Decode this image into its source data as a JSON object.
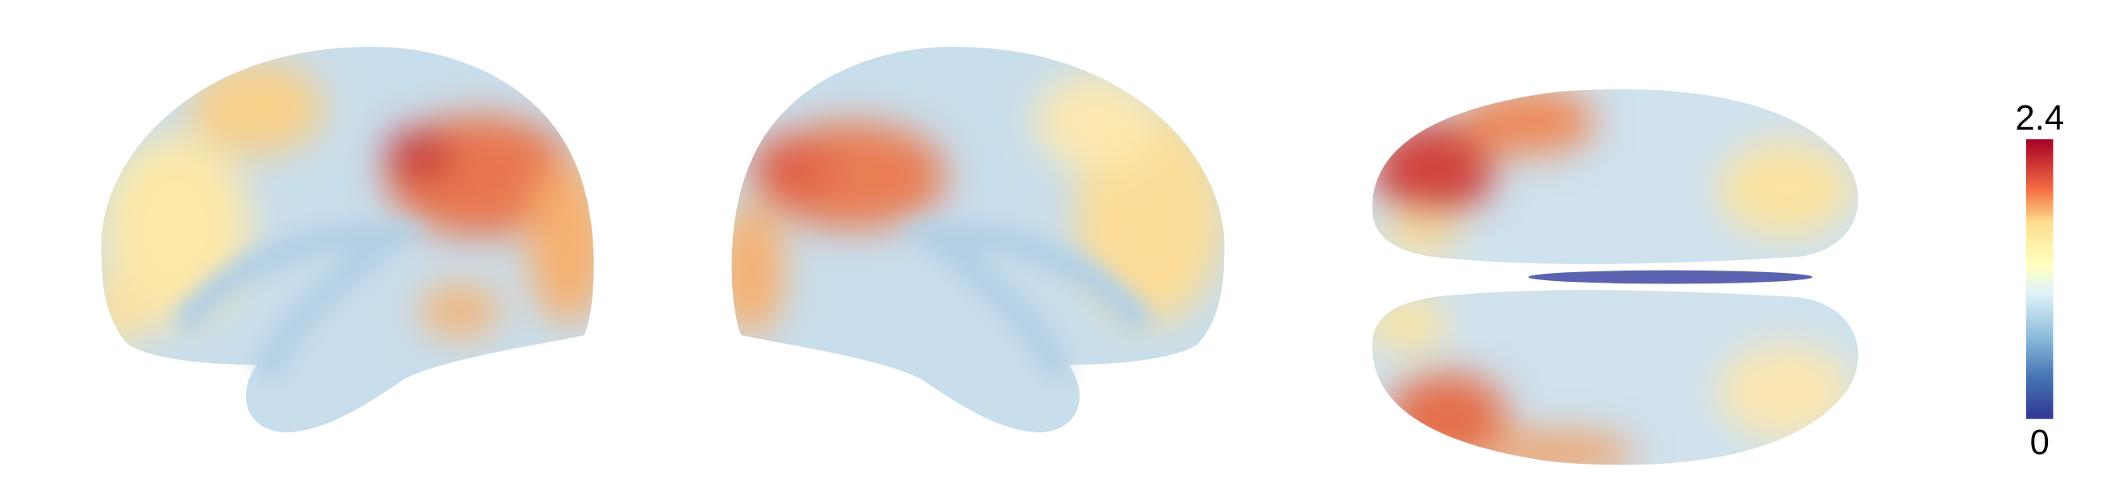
{
  "colorbar": {
    "max": 2.4,
    "min": 0
  }
}
